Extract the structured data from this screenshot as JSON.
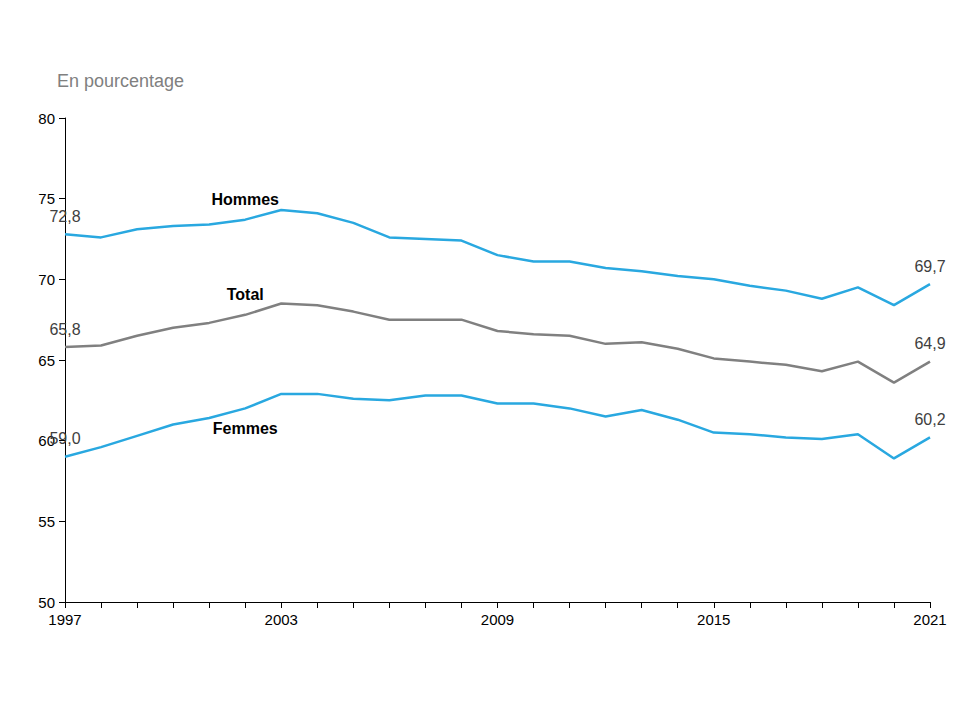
{
  "chart_data": {
    "type": "line",
    "y_label": "En pourcentage",
    "categories": [
      "1997",
      null,
      null,
      null,
      null,
      null,
      "2003",
      null,
      null,
      null,
      null,
      null,
      "2009",
      null,
      null,
      null,
      null,
      null,
      "2015",
      null,
      null,
      null,
      null,
      null,
      "2021"
    ],
    "series": [
      {
        "name": "Hommes",
        "color": "#29a8e0",
        "values": [
          72.8,
          72.6,
          73.1,
          73.3,
          73.4,
          73.7,
          74.3,
          74.1,
          73.5,
          72.6,
          72.5,
          72.4,
          71.5,
          71.1,
          71.1,
          70.7,
          70.5,
          70.2,
          70.0,
          69.6,
          69.3,
          68.8,
          69.5,
          68.4,
          69.7
        ],
        "value_labels": [
          "72,8",
          null,
          null,
          null,
          null,
          null,
          null,
          null,
          null,
          null,
          null,
          null,
          null,
          null,
          null,
          null,
          null,
          null,
          null,
          null,
          null,
          null,
          null,
          null,
          "69,7"
        ]
      },
      {
        "name": "Total",
        "color": "#808080",
        "values": [
          65.8,
          65.9,
          66.5,
          67.0,
          67.3,
          67.8,
          68.5,
          68.4,
          68.0,
          67.5,
          67.5,
          67.5,
          66.8,
          66.6,
          66.5,
          66.0,
          66.1,
          65.7,
          65.1,
          64.9,
          64.7,
          64.3,
          64.9,
          63.6,
          64.9
        ],
        "value_labels": [
          "65,8",
          null,
          null,
          null,
          null,
          null,
          null,
          null,
          null,
          null,
          null,
          null,
          null,
          null,
          null,
          null,
          null,
          null,
          null,
          null,
          null,
          null,
          null,
          null,
          "64,9"
        ]
      },
      {
        "name": "Femmes",
        "color": "#29a8e0",
        "values": [
          59.0,
          59.6,
          60.3,
          61.0,
          61.4,
          62.0,
          62.9,
          62.9,
          62.6,
          62.5,
          62.8,
          62.8,
          62.3,
          62.3,
          62.0,
          61.5,
          61.9,
          61.3,
          60.5,
          60.4,
          60.2,
          60.1,
          60.4,
          58.9,
          60.2
        ],
        "value_labels": [
          "59,0",
          null,
          null,
          null,
          null,
          null,
          null,
          null,
          null,
          null,
          null,
          null,
          null,
          null,
          null,
          null,
          null,
          null,
          null,
          null,
          null,
          null,
          null,
          null,
          "60,2"
        ]
      }
    ],
    "ylim": [
      50,
      80
    ],
    "yticks": [
      50,
      55,
      60,
      65,
      70,
      75,
      80
    ],
    "grid": false,
    "data_labels": true
  }
}
